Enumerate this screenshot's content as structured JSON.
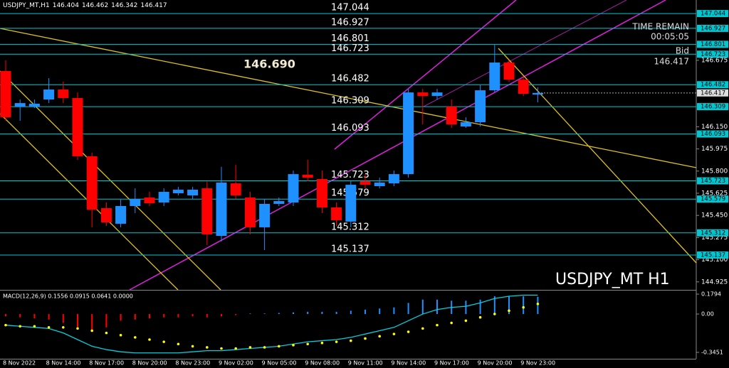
{
  "chart_data": [
    {
      "type": "candlestick",
      "title": "USDJPY_MT,H1",
      "watermark": "USDJPY_MT H1",
      "annotation": "146.690",
      "timer_label": "TIME REMAIN",
      "timer": "00:05:05",
      "bid_label": "Bid",
      "categories": [
        "8 Nov 2022",
        null,
        null,
        "8 Nov 14:00",
        null,
        null,
        "8 Nov 17:00",
        null,
        null,
        "8 Nov 20:00",
        null,
        null,
        "8 Nov 23:00",
        null,
        null,
        "9 Nov 02:00",
        null,
        null,
        "9 Nov 05:00",
        null,
        null,
        "9 Nov 08:00",
        null,
        null,
        "9 Nov 11:00",
        null,
        null,
        "9 Nov 14:00",
        null,
        null,
        "9 Nov 17:00",
        null,
        null,
        "9 Nov 20:00",
        null,
        null,
        "9 Nov 23:00",
        null
      ],
      "open": [
        146.59,
        146.309,
        146.309,
        146.365,
        146.444,
        146.377,
        145.917,
        145.507,
        145.384,
        145.524,
        145.591,
        145.552,
        145.625,
        145.608,
        145.664,
        145.288,
        145.703,
        145.591,
        145.356,
        145.541,
        145.552,
        145.771,
        145.737,
        145.513,
        145.401,
        145.72,
        145.681,
        145.703,
        145.776,
        146.421,
        146.393,
        146.309,
        146.152,
        146.186,
        146.438,
        146.657,
        146.522,
        146.404
      ],
      "high": [
        146.674,
        146.365,
        146.365,
        146.534,
        146.506,
        146.421,
        145.945,
        145.552,
        145.58,
        145.664,
        145.636,
        145.664,
        145.675,
        145.675,
        145.72,
        145.833,
        145.849,
        145.636,
        145.58,
        145.591,
        145.804,
        145.889,
        145.804,
        145.552,
        145.72,
        145.776,
        145.748,
        145.804,
        146.449,
        146.449,
        146.449,
        146.365,
        146.225,
        146.478,
        146.797,
        146.674,
        146.545,
        146.462
      ],
      "low": [
        146.197,
        146.197,
        146.298,
        146.337,
        146.337,
        145.889,
        145.356,
        145.367,
        145.356,
        145.468,
        145.524,
        145.524,
        145.608,
        145.58,
        145.216,
        145.244,
        145.58,
        145.3,
        145.176,
        145.524,
        145.524,
        145.72,
        145.468,
        145.367,
        145.356,
        145.664,
        145.664,
        145.681,
        145.748,
        146.169,
        146.365,
        146.141,
        146.141,
        146.152,
        146.421,
        146.506,
        146.393,
        146.342
      ],
      "close": [
        146.225,
        146.337,
        146.332,
        146.444,
        146.377,
        145.917,
        145.496,
        145.395,
        145.524,
        145.58,
        145.546,
        145.636,
        145.653,
        145.653,
        145.3,
        145.709,
        145.608,
        145.356,
        145.541,
        145.563,
        145.776,
        145.748,
        145.513,
        145.412,
        145.692,
        145.692,
        145.709,
        145.776,
        146.421,
        146.393,
        146.421,
        146.169,
        146.186,
        146.438,
        146.657,
        146.522,
        146.41,
        146.417
      ],
      "up_color": "#1e90ff",
      "down_color": "#ff0000",
      "levels": [
        147.044,
        146.927,
        146.801,
        146.723,
        146.482,
        146.309,
        146.093,
        145.723,
        145.579,
        145.312,
        145.137
      ],
      "level_color": "#00c8d2",
      "ylim": [
        144.862,
        147.151
      ],
      "yticks": [
        146.675,
        {
          "value": 146.15,
          "label": "146.150"
        },
        145.975,
        {
          "value": 145.8,
          "label": "145.800"
        },
        145.625,
        {
          "value": 145.45,
          "label": "145.450"
        },
        145.275,
        {
          "value": 145.1,
          "label": "145.100"
        },
        144.925
      ]
    },
    {
      "type": "macd",
      "title": "MACD(12,26,9) 0.1556 0.0915 0.0641 0.0000",
      "values": [
        -0.02,
        -0.03,
        -0.04,
        -0.05,
        -0.08,
        -0.12,
        -0.15,
        -0.12,
        -0.06,
        -0.05,
        -0.04,
        -0.03,
        -0.03,
        -0.02,
        -0.03,
        -0.02,
        -0.01,
        0.005,
        0.005,
        0.01,
        0.015,
        0.02,
        0.02,
        0.02,
        0.03,
        0.04,
        0.05,
        0.06,
        0.1,
        0.13,
        0.13,
        0.12,
        0.12,
        0.13,
        0.16,
        0.16,
        0.16,
        0.1556
      ],
      "up_color": "#1e90ff",
      "down_color": "#ff0000",
      "signal": [
        -0.1,
        -0.11,
        -0.11,
        -0.12,
        -0.12,
        -0.13,
        -0.15,
        -0.17,
        -0.19,
        -0.21,
        -0.23,
        -0.25,
        -0.27,
        -0.29,
        -0.3,
        -0.31,
        -0.31,
        -0.3,
        -0.3,
        -0.29,
        -0.28,
        -0.27,
        -0.26,
        -0.25,
        -0.24,
        -0.22,
        -0.2,
        -0.18,
        -0.16,
        -0.13,
        -0.1,
        -0.08,
        -0.06,
        -0.03,
        0.0,
        0.03,
        0.06,
        0.0915
      ],
      "signal_color": "#ffff00",
      "line": [
        -0.1,
        -0.11,
        -0.12,
        -0.13,
        -0.17,
        -0.23,
        -0.29,
        -0.32,
        -0.34,
        -0.35,
        -0.35,
        -0.35,
        -0.35,
        -0.34,
        -0.33,
        -0.33,
        -0.32,
        -0.31,
        -0.3,
        -0.29,
        -0.27,
        -0.25,
        -0.24,
        -0.23,
        -0.21,
        -0.18,
        -0.15,
        -0.12,
        -0.06,
        0.0,
        0.04,
        0.06,
        0.07,
        0.1,
        0.14,
        0.16,
        0.17,
        0.17
      ],
      "line_color": "#00d0e0",
      "ylim": [
        -0.4027,
        0.2114
      ],
      "yticks": [
        0.1794,
        {
          "value": 0,
          "label": "0.00"
        },
        -0.3451
      ]
    }
  ]
}
